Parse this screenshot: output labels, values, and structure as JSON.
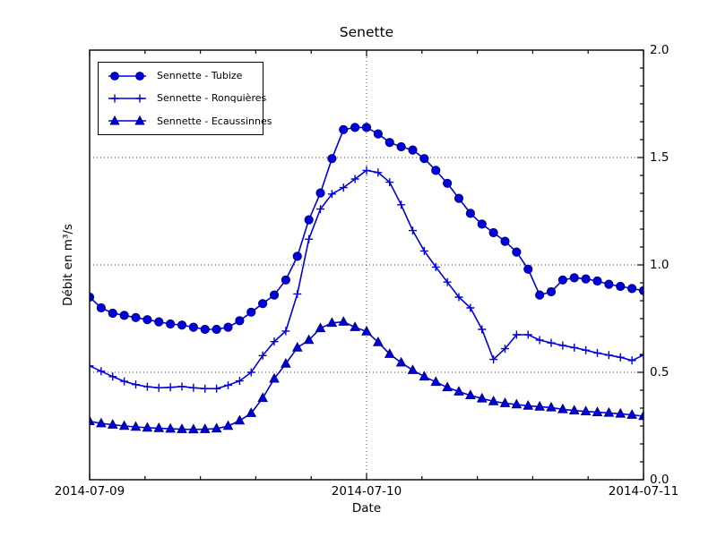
{
  "chart_data": {
    "type": "line",
    "title": "Senette",
    "xlabel": "Date",
    "ylabel": "Débit en m³/s",
    "x_tick_labels": [
      "2014-07-09",
      "2014-07-10",
      "2014-07-11"
    ],
    "y_tick_labels": [
      "0.0",
      "0.5",
      "1.0",
      "1.5",
      "2.0"
    ],
    "x_unit": "hours since 2014-07-09 00:00, one point per hour",
    "xlim_hours": [
      0,
      48
    ],
    "ylim": [
      0.0,
      2.0
    ],
    "grid": "dotted at x=2014-07-10 and y=0.5,1.0,1.5",
    "legend_position": "upper-left",
    "colors": {
      "line": "#0000dd",
      "marker_fill": "#0000dd",
      "marker_edge": "#000080",
      "grid": "#444444",
      "axes": "#000000"
    },
    "series": [
      {
        "name": "Sennette - Tubize",
        "marker": "circle",
        "values": [
          0.85,
          0.8,
          0.775,
          0.765,
          0.755,
          0.745,
          0.735,
          0.725,
          0.72,
          0.71,
          0.7,
          0.7,
          0.71,
          0.74,
          0.78,
          0.82,
          0.86,
          0.93,
          1.04,
          1.21,
          1.335,
          1.495,
          1.63,
          1.64,
          1.64,
          1.61,
          1.57,
          1.55,
          1.535,
          1.495,
          1.44,
          1.38,
          1.31,
          1.24,
          1.19,
          1.15,
          1.11,
          1.06,
          0.98,
          0.86,
          0.875,
          0.93,
          0.94,
          0.935,
          0.925,
          0.91,
          0.9,
          0.89,
          0.88
        ]
      },
      {
        "name": "Sennette - Ronquières",
        "marker": "plus",
        "values": [
          0.53,
          0.505,
          0.48,
          0.458,
          0.443,
          0.433,
          0.428,
          0.43,
          0.434,
          0.428,
          0.424,
          0.424,
          0.44,
          0.46,
          0.5,
          0.578,
          0.643,
          0.692,
          0.865,
          1.12,
          1.26,
          1.33,
          1.36,
          1.4,
          1.44,
          1.43,
          1.385,
          1.28,
          1.16,
          1.065,
          0.99,
          0.92,
          0.85,
          0.8,
          0.7,
          0.56,
          0.61,
          0.675,
          0.675,
          0.65,
          0.637,
          0.625,
          0.615,
          0.603,
          0.59,
          0.58,
          0.57,
          0.555,
          0.58
        ]
      },
      {
        "name": "Sennette - Ecaussinnes",
        "marker": "triangle",
        "values": [
          0.272,
          0.262,
          0.256,
          0.25,
          0.246,
          0.242,
          0.24,
          0.237,
          0.235,
          0.234,
          0.235,
          0.238,
          0.25,
          0.275,
          0.31,
          0.38,
          0.47,
          0.54,
          0.615,
          0.65,
          0.705,
          0.73,
          0.735,
          0.71,
          0.69,
          0.64,
          0.585,
          0.545,
          0.51,
          0.48,
          0.455,
          0.43,
          0.41,
          0.393,
          0.378,
          0.365,
          0.356,
          0.35,
          0.344,
          0.34,
          0.336,
          0.328,
          0.322,
          0.318,
          0.314,
          0.311,
          0.307,
          0.302,
          0.296
        ]
      }
    ]
  }
}
